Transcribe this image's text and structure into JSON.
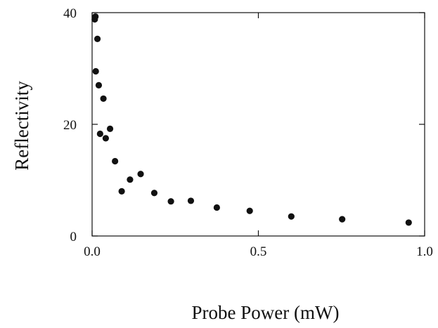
{
  "chart_data": {
    "type": "scatter",
    "title": "",
    "xlabel": "Probe Power (mW)",
    "ylabel": "Reflectivity",
    "xlim": [
      0,
      1.0
    ],
    "ylim": [
      0,
      40
    ],
    "xticks": [
      0.0,
      0.5,
      1.0
    ],
    "xtick_labels": [
      "0.0",
      "0.5",
      "1.0"
    ],
    "yticks": [
      0,
      20,
      40
    ],
    "ytick_labels": [
      "0",
      "20",
      "40"
    ],
    "grid": false,
    "marker_color": "#111111",
    "series": [
      {
        "x": [
          0.008,
          0.01,
          0.011,
          0.016,
          0.02,
          0.024,
          0.034,
          0.041,
          0.054,
          0.069,
          0.089,
          0.114,
          0.146,
          0.187,
          0.237,
          0.297,
          0.375,
          0.474,
          0.599,
          0.752,
          0.952
        ],
        "y": [
          38.8,
          39.3,
          29.5,
          35.3,
          27.0,
          18.3,
          24.6,
          17.5,
          19.2,
          13.4,
          8.0,
          10.1,
          11.1,
          7.7,
          6.2,
          6.3,
          5.1,
          4.5,
          3.5,
          3.0,
          2.4
        ]
      }
    ]
  }
}
